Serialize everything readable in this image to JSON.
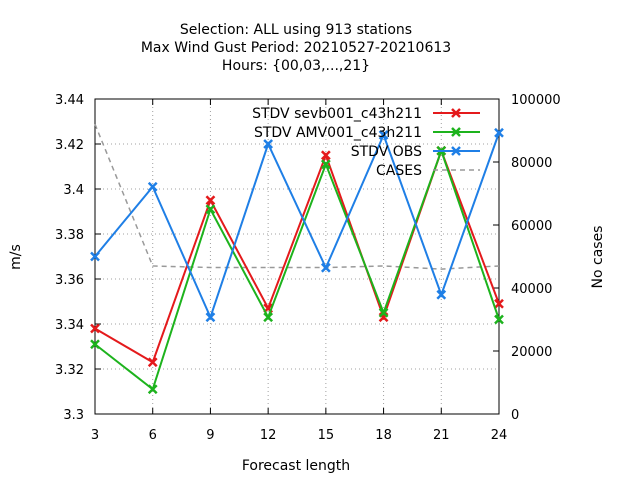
{
  "chart_data": {
    "type": "line",
    "title_lines": [
      "Selection: ALL using   913 stations",
      "Max Wind Gust   Period: 20210527-20210613",
      "Hours: {00,03,...,21}"
    ],
    "xlabel": "Forecast length",
    "ylabel": "m/s",
    "y2label": "No cases",
    "x": [
      3,
      6,
      9,
      12,
      15,
      18,
      21,
      24
    ],
    "x_ticks": [
      "3",
      "6",
      "9",
      "12",
      "15",
      "18",
      "21",
      "24"
    ],
    "ylim": [
      3.3,
      3.44
    ],
    "y_ticks": [
      "3.3",
      "3.32",
      "3.34",
      "3.36",
      "3.38",
      "3.4",
      "3.42",
      "3.44"
    ],
    "y2lim": [
      0,
      100000
    ],
    "y2_ticks": [
      "0",
      "20000",
      "40000",
      "60000",
      "80000",
      "100000"
    ],
    "grid": true,
    "legend_position": "top-right",
    "series": [
      {
        "name": "STDV sevb001_c43h211",
        "color": "#e41a1c",
        "axis": "y",
        "values": [
          3.338,
          3.323,
          3.395,
          3.347,
          3.415,
          3.343,
          3.417,
          3.349
        ]
      },
      {
        "name": "STDV AMV001_c43h211",
        "color": "#1db31d",
        "axis": "y",
        "values": [
          3.331,
          3.311,
          3.391,
          3.343,
          3.411,
          3.345,
          3.417,
          3.342
        ]
      },
      {
        "name": "STDV OBS",
        "color": "#1f7fe6",
        "axis": "y",
        "values": [
          3.37,
          3.401,
          3.343,
          3.42,
          3.365,
          3.424,
          3.353,
          3.425
        ]
      },
      {
        "name": "CASES",
        "color": "#999999",
        "axis": "y2",
        "dashed": true,
        "values": [
          92000,
          47000,
          46500,
          46500,
          46500,
          47000,
          46000,
          47000
        ]
      }
    ]
  }
}
